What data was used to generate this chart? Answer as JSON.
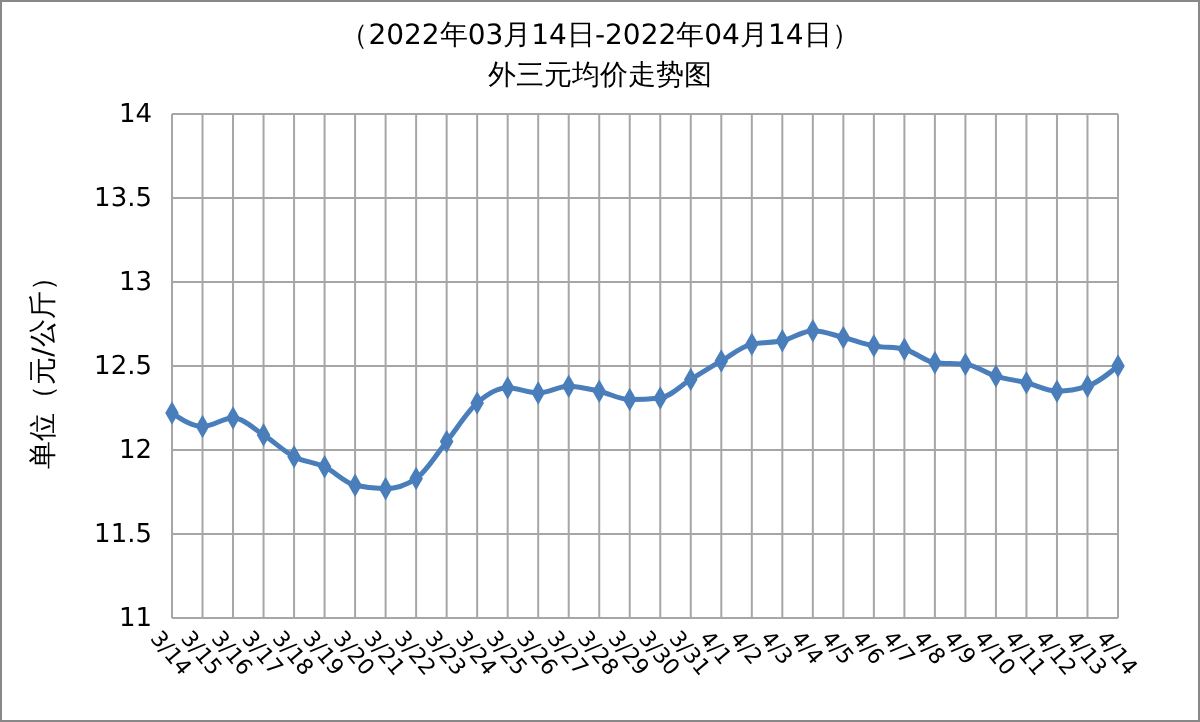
{
  "chart_data": {
    "type": "line",
    "title": "（2022年03月14日-2022年04月14日）",
    "subtitle": "外三元均价走势图",
    "ylabel": "单位（元/公斤）",
    "categories": [
      "3/14",
      "3/15",
      "3/16",
      "3/17",
      "3/18",
      "3/19",
      "3/20",
      "3/21",
      "3/22",
      "3/23",
      "3/24",
      "3/25",
      "3/26",
      "3/27",
      "3/28",
      "3/29",
      "3/30",
      "3/31",
      "4/1",
      "4/2",
      "4/3",
      "4/4",
      "4/5",
      "4/6",
      "4/7",
      "4/8",
      "4/9",
      "4/10",
      "4/11",
      "4/12",
      "4/13",
      "4/14"
    ],
    "series": [
      {
        "color": "#4a7ebb",
        "values": [
          12.22,
          12.14,
          12.19,
          12.09,
          11.96,
          11.9,
          11.79,
          11.77,
          11.83,
          12.05,
          12.28,
          12.37,
          12.34,
          12.38,
          12.35,
          12.3,
          12.31,
          12.42,
          12.53,
          12.63,
          12.65,
          12.71,
          12.67,
          12.62,
          12.6,
          12.52,
          12.51,
          12.44,
          12.4,
          12.35,
          12.38,
          12.5
        ]
      }
    ],
    "ylim": [
      11,
      14
    ],
    "yticks": [
      11,
      11.5,
      12,
      12.5,
      13,
      13.5,
      14
    ],
    "grid": true,
    "marker": "diamond",
    "line_style": "solid"
  }
}
